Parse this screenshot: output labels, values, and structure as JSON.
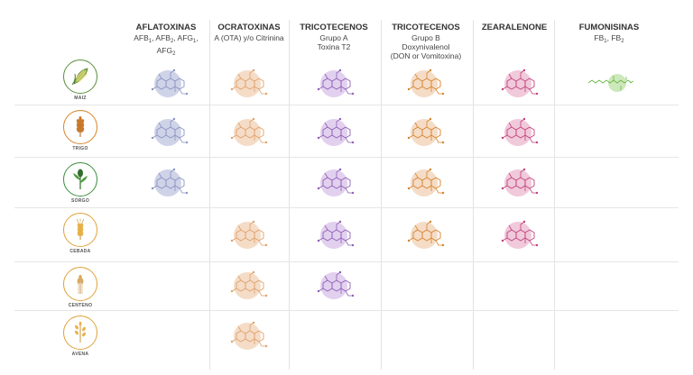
{
  "columns": [
    {
      "key": "aflatoxinas",
      "title": "AFLATOXINAS",
      "sub_parts": [
        {
          "t": "AFB"
        },
        {
          "s": "1"
        },
        {
          "t": ", AFB"
        },
        {
          "s": "2"
        },
        {
          "t": ", AFG"
        },
        {
          "s": "1"
        },
        {
          "t": ", AFG"
        },
        {
          "s": "2"
        }
      ],
      "color": "#8a93c2",
      "fill": "#c7cbe3"
    },
    {
      "key": "ocratoxinas",
      "title": "OCRATOXINAS",
      "sub_lines": [
        "A (OTA) y/o Citrinina"
      ],
      "color": "#e0a16b",
      "fill": "#f2d6bd"
    },
    {
      "key": "tricotecenos_a",
      "title": "TRICOTECENOS",
      "sub_lines": [
        "Grupo A",
        "Toxina T2"
      ],
      "color": "#8e5fb5",
      "fill": "#ddc8ec"
    },
    {
      "key": "tricotecenos_b",
      "title": "TRICOTECENOS",
      "sub_lines": [
        "Grupo B",
        "Doxynivalenol",
        "(DON or Vomitoxina)"
      ],
      "color": "#d9822b",
      "fill": "#f2d6bd"
    },
    {
      "key": "zearalenone",
      "title": "ZEARALENONE",
      "sub_lines": [],
      "color": "#c2417e",
      "fill": "#edbfd4"
    },
    {
      "key": "fumonisinas",
      "title": "FUMONISINAS",
      "sub_parts": [
        {
          "t": "FB"
        },
        {
          "s": "1"
        },
        {
          "t": ", FB"
        },
        {
          "s": "2"
        }
      ],
      "color": "#6cb94a",
      "fill": "#c8e6b3"
    }
  ],
  "crops": [
    {
      "key": "maiz",
      "label": "MAIZ",
      "icon": "corn-icon",
      "ring": "#5a8f3c",
      "toxins": [
        "aflatoxinas",
        "ocratoxinas",
        "tricotecenos_a",
        "tricotecenos_b",
        "zearalenone",
        "fumonisinas"
      ]
    },
    {
      "key": "trigo",
      "label": "TRIGO",
      "icon": "wheat-icon",
      "ring": "#d9822b",
      "toxins": [
        "aflatoxinas",
        "ocratoxinas",
        "tricotecenos_a",
        "tricotecenos_b",
        "zearalenone"
      ]
    },
    {
      "key": "sorgo",
      "label": "SORGO",
      "icon": "sorghum-icon",
      "ring": "#3a8f3c",
      "toxins": [
        "aflatoxinas",
        "tricotecenos_a",
        "tricotecenos_b",
        "zearalenone"
      ]
    },
    {
      "key": "cebada",
      "label": "CEBADA",
      "icon": "barley-icon",
      "ring": "#e0a13b",
      "toxins": [
        "ocratoxinas",
        "tricotecenos_a",
        "tricotecenos_b",
        "zearalenone"
      ]
    },
    {
      "key": "centeno",
      "label": "CENTENO",
      "icon": "rye-icon",
      "ring": "#e0a13b",
      "toxins": [
        "ocratoxinas",
        "tricotecenos_a"
      ]
    },
    {
      "key": "avena",
      "label": "AVENA",
      "icon": "oat-icon",
      "ring": "#e0a13b",
      "toxins": [
        "ocratoxinas"
      ]
    }
  ]
}
